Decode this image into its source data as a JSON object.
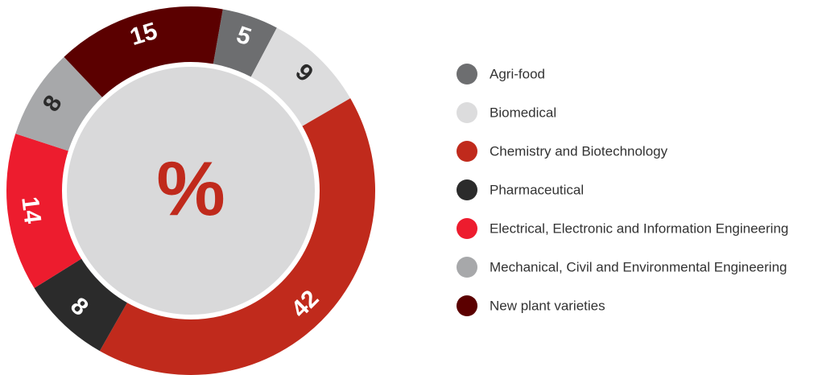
{
  "chart_data": {
    "type": "donut",
    "center_label": "%",
    "categories": [
      "Agri-food",
      "Biomedical",
      "Chemistry and Biotechnology",
      "Pharmaceutical",
      "Electrical, Electronic and Information Engineering",
      "Mechanical, Civil and Environmental Engineering",
      "New plant varieties"
    ],
    "values": [
      5,
      9,
      42,
      8,
      14,
      8,
      15
    ],
    "colors": [
      "#6d6e70",
      "#dcdcdd",
      "#c02a1c",
      "#2b2b2b",
      "#ed1c2e",
      "#a7a8aa",
      "#5b0000"
    ],
    "label_colors": [
      "#ffffff",
      "#2b2b2b",
      "#ffffff",
      "#ffffff",
      "#ffffff",
      "#2b2b2b",
      "#ffffff"
    ]
  }
}
